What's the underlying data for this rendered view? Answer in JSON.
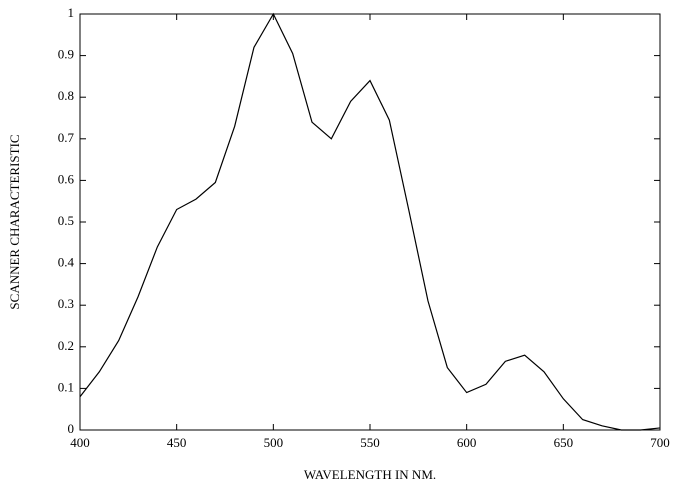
{
  "chart_data": {
    "type": "line",
    "xlabel": "WAVELENGTH IN NM.",
    "ylabel": "SCANNER CHARACTERISTIC",
    "x": [
      400,
      410,
      420,
      430,
      440,
      450,
      460,
      470,
      480,
      490,
      500,
      510,
      520,
      530,
      540,
      550,
      560,
      570,
      580,
      590,
      600,
      610,
      620,
      630,
      640,
      650,
      660,
      670,
      680,
      690,
      700
    ],
    "series": [
      {
        "name": "scanner",
        "color": "#000000",
        "values": [
          0.08,
          0.14,
          0.215,
          0.32,
          0.44,
          0.53,
          0.555,
          0.595,
          0.73,
          0.92,
          1.0,
          0.905,
          0.74,
          0.7,
          0.79,
          0.84,
          0.745,
          0.53,
          0.31,
          0.15,
          0.09,
          0.11,
          0.165,
          0.18,
          0.14,
          0.075,
          0.025,
          0.01,
          0.0,
          0.0,
          0.005
        ]
      }
    ],
    "xlim": [
      400,
      700
    ],
    "xticks": [
      400,
      450,
      500,
      550,
      600,
      650,
      700
    ],
    "ylim": [
      0,
      1
    ],
    "yticks": [
      0,
      0.1,
      0.2,
      0.3,
      0.4,
      0.5,
      0.6,
      0.7,
      0.8,
      0.9,
      1
    ],
    "grid": false
  }
}
